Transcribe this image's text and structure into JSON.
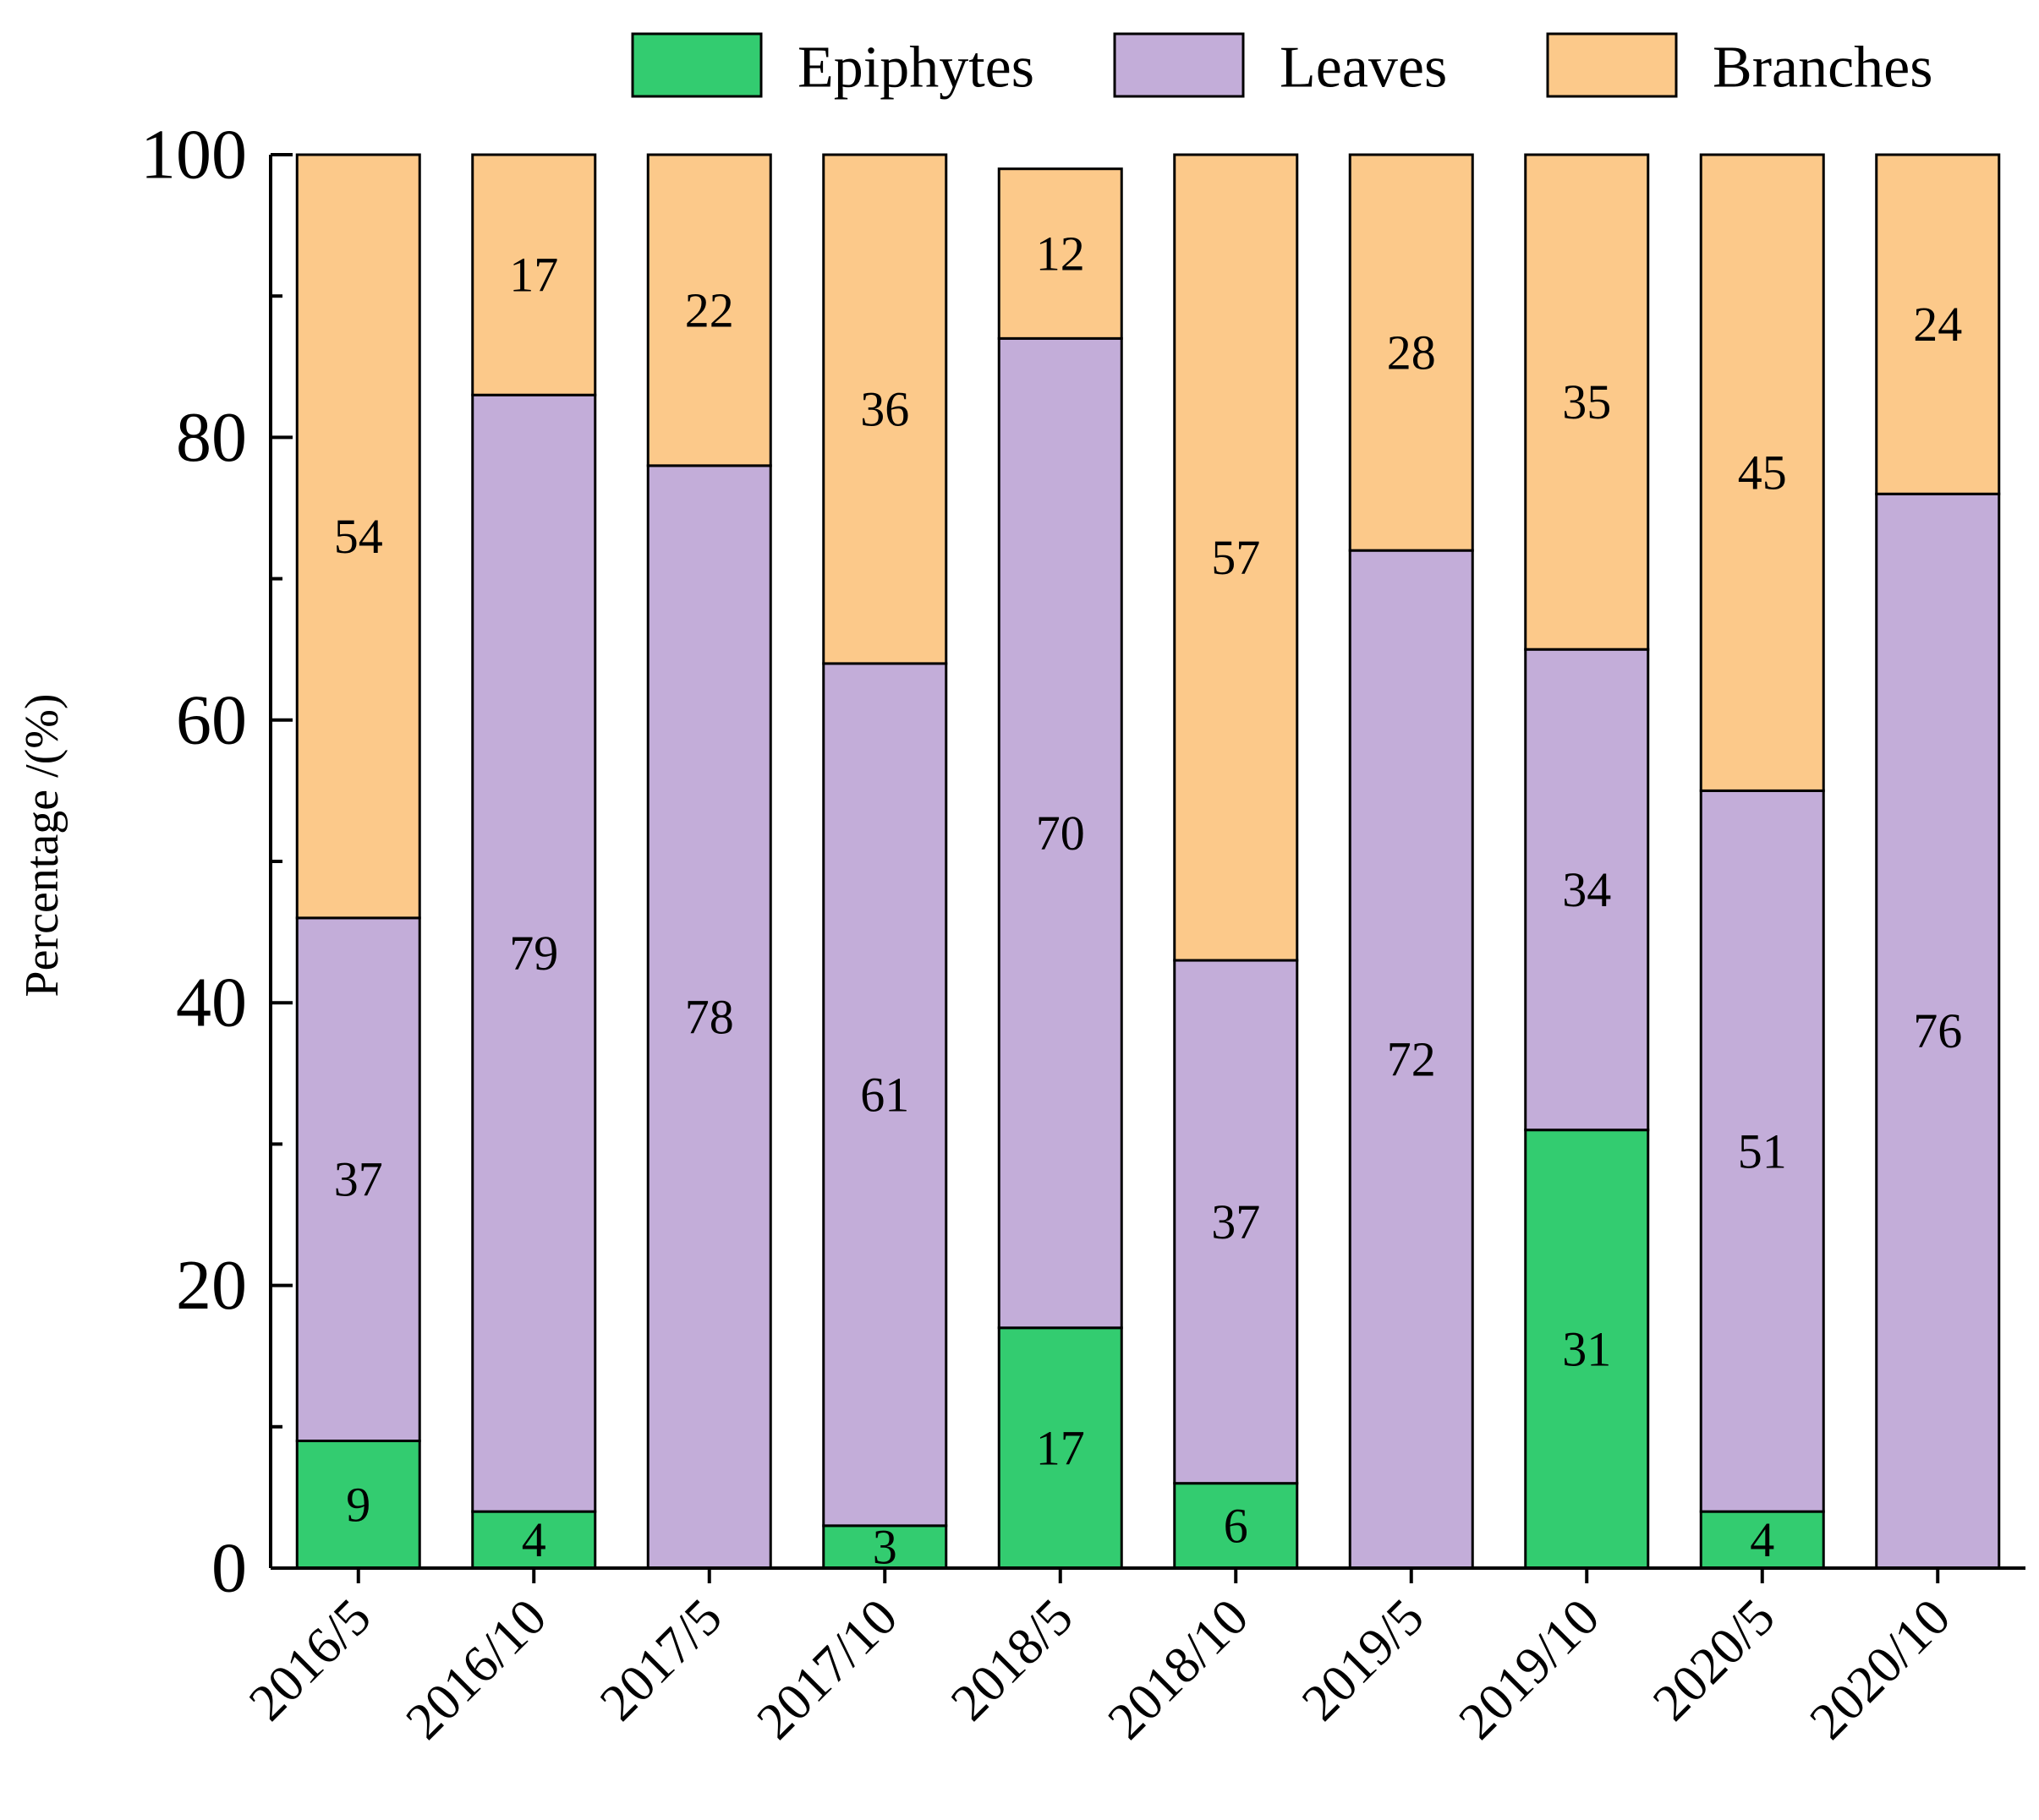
{
  "chart_data": {
    "type": "bar",
    "stacked": true,
    "title": "",
    "xlabel": "",
    "ylabel": "Percentage /(%)",
    "ylim": [
      0,
      100
    ],
    "yticks": [
      "0",
      "20",
      "40",
      "60",
      "80",
      "100"
    ],
    "categories": [
      "2016/5",
      "2016/10",
      "2017/5",
      "2017/10",
      "2018/5",
      "2018/10",
      "2019/5",
      "2019/10",
      "2020/5",
      "2020/10"
    ],
    "legend_position": "top-right",
    "series": [
      {
        "name": "Epiphytes",
        "color": "#33cc70",
        "values": [
          9,
          4,
          0,
          3,
          17,
          6,
          0,
          31,
          4,
          0
        ],
        "labels": [
          "9",
          "4",
          "",
          "3",
          "17",
          "6",
          "",
          "31",
          "4",
          ""
        ]
      },
      {
        "name": "Leaves",
        "color": "#c3add9",
        "values": [
          37,
          79,
          78,
          61,
          70,
          37,
          72,
          34,
          51,
          76
        ],
        "labels": [
          "37",
          "79",
          "78",
          "61",
          "70",
          "37",
          "72",
          "34",
          "51",
          "76"
        ]
      },
      {
        "name": "Branches",
        "color": "#fcc98a",
        "values": [
          54,
          17,
          22,
          36,
          12,
          57,
          28,
          35,
          45,
          24
        ],
        "labels": [
          "54",
          "17",
          "22",
          "36",
          "12",
          "57",
          "28",
          "35",
          "45",
          "24"
        ]
      }
    ]
  }
}
